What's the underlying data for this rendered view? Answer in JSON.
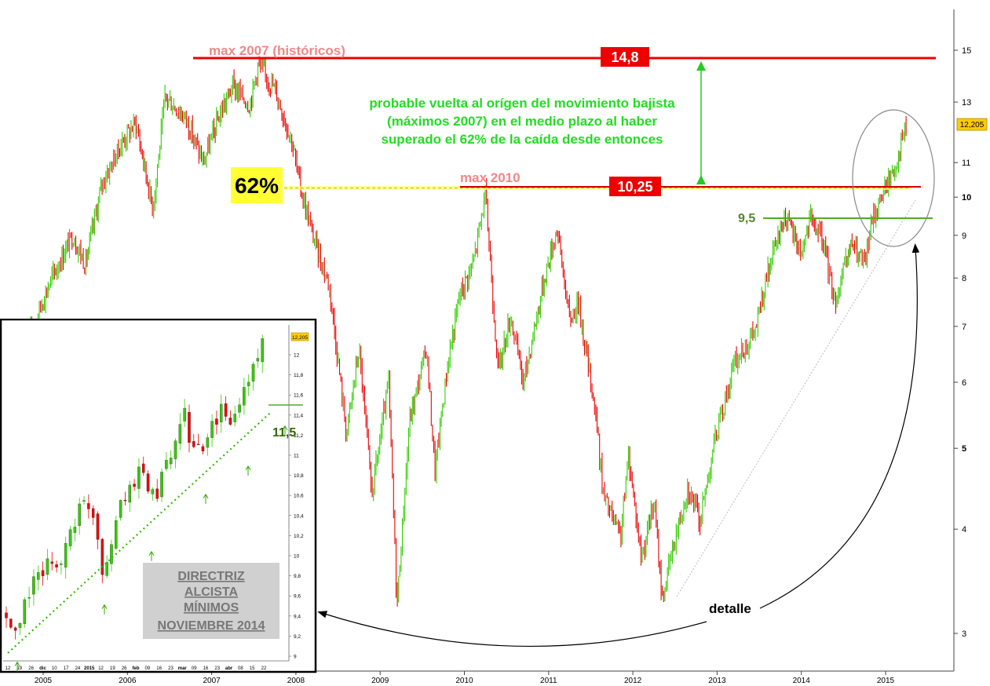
{
  "chart_data": [
    {
      "type": "candlestick",
      "x_ticks": [
        "2005",
        "2006",
        "2007",
        "2008",
        "2009",
        "2010",
        "2011",
        "2012",
        "2013",
        "2014",
        "2015"
      ],
      "y_scale": "log",
      "y_ticks": [
        "3",
        "4",
        "5",
        "6",
        "7",
        "8",
        "9",
        "10",
        "11",
        "13",
        "15"
      ],
      "ylim": [
        2.8,
        16
      ],
      "last_price": "12,205",
      "colors": {
        "up": "#33cc00",
        "down": "#ee0000"
      },
      "series": [
        {
          "anchors_date_value": [
            [
              2004.85,
              6.9
            ],
            [
              2005.1,
              8.0
            ],
            [
              2005.35,
              9.0
            ],
            [
              2005.5,
              8.3
            ],
            [
              2005.7,
              10.4
            ],
            [
              2005.95,
              11.7
            ],
            [
              2006.1,
              12.3
            ],
            [
              2006.3,
              9.7
            ],
            [
              2006.45,
              13.2
            ],
            [
              2006.7,
              12.4
            ],
            [
              2006.9,
              11.0
            ],
            [
              2007.1,
              12.6
            ],
            [
              2007.25,
              13.6
            ],
            [
              2007.45,
              12.9
            ],
            [
              2007.55,
              14.4
            ],
            [
              2007.75,
              13.5
            ],
            [
              2007.95,
              11.7
            ],
            [
              2008.05,
              10.3
            ],
            [
              2008.2,
              9.0
            ],
            [
              2008.4,
              7.8
            ],
            [
              2008.6,
              5.2
            ],
            [
              2008.75,
              6.6
            ],
            [
              2008.9,
              4.4
            ],
            [
              2009.1,
              6.0
            ],
            [
              2009.2,
              3.25
            ],
            [
              2009.35,
              5.4
            ],
            [
              2009.55,
              6.6
            ],
            [
              2009.65,
              4.7
            ],
            [
              2009.8,
              6.3
            ],
            [
              2009.95,
              7.7
            ],
            [
              2010.1,
              8.3
            ],
            [
              2010.25,
              10.1
            ],
            [
              2010.4,
              6.2
            ],
            [
              2010.55,
              7.2
            ],
            [
              2010.7,
              6.0
            ],
            [
              2010.95,
              8.0
            ],
            [
              2011.1,
              9.2
            ],
            [
              2011.25,
              7.1
            ],
            [
              2011.35,
              7.5
            ],
            [
              2011.55,
              5.6
            ],
            [
              2011.65,
              4.4
            ],
            [
              2011.85,
              3.9
            ],
            [
              2011.95,
              4.9
            ],
            [
              2012.1,
              3.7
            ],
            [
              2012.25,
              4.3
            ],
            [
              2012.35,
              3.3
            ],
            [
              2012.5,
              3.9
            ],
            [
              2012.65,
              4.5
            ],
            [
              2012.8,
              4.1
            ],
            [
              2012.95,
              5.0
            ],
            [
              2013.2,
              6.3
            ],
            [
              2013.45,
              6.9
            ],
            [
              2013.6,
              8.1
            ],
            [
              2013.8,
              9.5
            ],
            [
              2014.0,
              8.6
            ],
            [
              2014.1,
              9.4
            ],
            [
              2014.25,
              8.9
            ],
            [
              2014.4,
              7.5
            ],
            [
              2014.6,
              8.8
            ],
            [
              2014.75,
              8.3
            ],
            [
              2014.85,
              9.5
            ],
            [
              2015.0,
              10.3
            ],
            [
              2015.1,
              10.8
            ],
            [
              2015.25,
              12.2
            ]
          ]
        }
      ],
      "annotations": {
        "max2007_label": "max 2007 (históricos)",
        "max2007_value": "14,8",
        "max2010_label": "max 2010",
        "max2010_value": "10,25",
        "fib_label": "62%",
        "support_value": "9,5",
        "note_line1": "probable vuelta al orígen del movimiento bajista",
        "note_line2": "(máximos 2007) en el medio plazo al haber",
        "note_line3": "superado el 62% de la caída desde entonces",
        "detail_label": "detalle"
      },
      "levels": {
        "max2007": 14.8,
        "max2010": 10.25,
        "support": 9.5
      }
    },
    {
      "type": "candlestick",
      "x_ticks": [
        "12",
        "19",
        "26",
        "dic",
        "10",
        "17",
        "24",
        "2015",
        "12",
        "19",
        "26",
        "feb",
        "09",
        "16",
        "23",
        "mar",
        "09",
        "16",
        "23",
        "abr",
        "08",
        "15",
        "22"
      ],
      "y_ticks": [
        "9",
        "9,2",
        "9,4",
        "9,6",
        "9,8",
        "10",
        "10,2",
        "10,4",
        "10,6",
        "10,8",
        "11",
        "11,2",
        "11,4",
        "11,6",
        "11,8",
        "12"
      ],
      "ylim": [
        9.0,
        12.2
      ],
      "last_price": "12,205",
      "level_label": "11,5",
      "level": 11.5,
      "title_box": [
        "DIRECTRIZ",
        "ALCISTA",
        "MÍNIMOS",
        "NOVIEMBRE 2014"
      ],
      "colors": {
        "up": "#33cc00",
        "down": "#ee0000",
        "trendline": "#33bb00"
      },
      "series": [
        {
          "anchors_index_value": [
            [
              0,
              9.4
            ],
            [
              2,
              9.15
            ],
            [
              4,
              9.5
            ],
            [
              6,
              9.8
            ],
            [
              8,
              9.75
            ],
            [
              10,
              10.0
            ],
            [
              12,
              9.9
            ],
            [
              14,
              10.3
            ],
            [
              16,
              10.45
            ],
            [
              18,
              10.55
            ],
            [
              20,
              10.25
            ],
            [
              21,
              9.85
            ],
            [
              23,
              10.2
            ],
            [
              25,
              10.55
            ],
            [
              27,
              10.6
            ],
            [
              29,
              10.85
            ],
            [
              31,
              10.7
            ],
            [
              33,
              10.6
            ],
            [
              35,
              10.9
            ],
            [
              37,
              11.05
            ],
            [
              39,
              11.4
            ],
            [
              41,
              11.05
            ],
            [
              43,
              10.95
            ],
            [
              45,
              11.3
            ],
            [
              47,
              11.45
            ],
            [
              49,
              11.3
            ],
            [
              51,
              11.55
            ],
            [
              53,
              11.75
            ],
            [
              55,
              12.05
            ],
            [
              56,
              12.2
            ]
          ]
        }
      ],
      "trendline_value": [
        9.0,
        11.45
      ]
    }
  ]
}
